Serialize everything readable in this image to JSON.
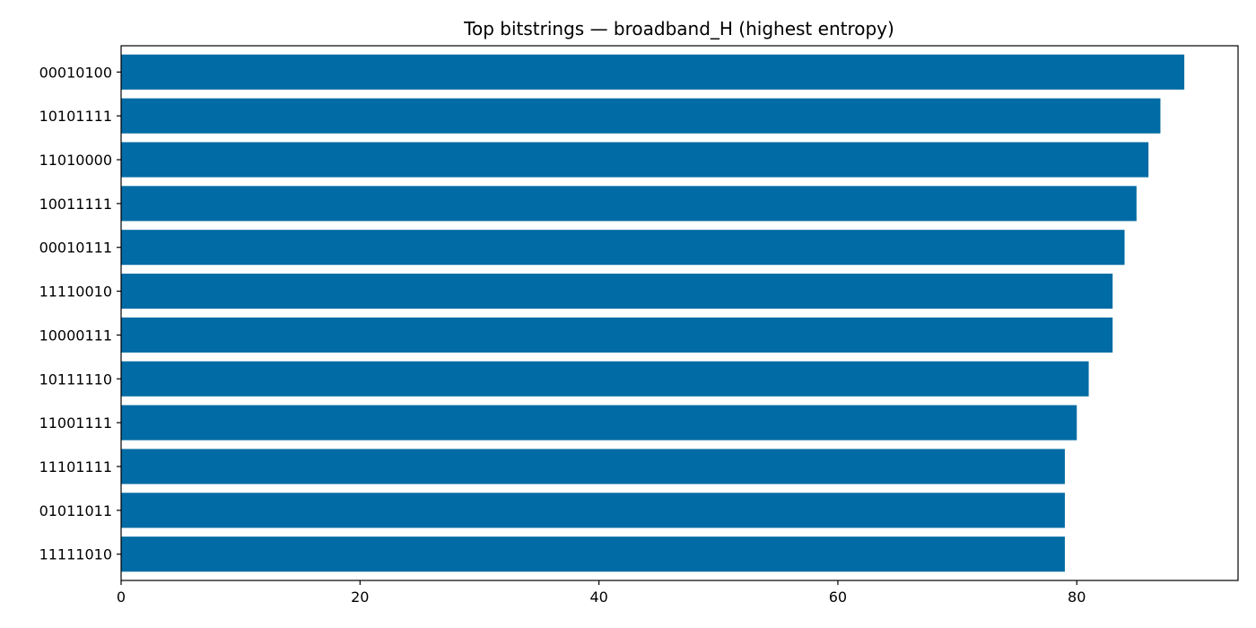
{
  "chart_data": {
    "type": "bar",
    "orientation": "horizontal",
    "title": "Top bitstrings — broadband_H (highest entropy)",
    "xlabel": "",
    "ylabel": "",
    "categories": [
      "00010100",
      "10101111",
      "11010000",
      "10011111",
      "00010111",
      "11110010",
      "10000111",
      "10111110",
      "11001111",
      "11101111",
      "01011011",
      "11111010"
    ],
    "values": [
      89,
      87,
      86,
      85,
      84,
      83,
      83,
      81,
      80,
      79,
      79,
      79
    ],
    "xlim": [
      0,
      93.5
    ],
    "xticks": [
      0,
      20,
      40,
      60,
      80
    ],
    "bar_color": "#006ba4",
    "grid": false,
    "legend": "none"
  }
}
